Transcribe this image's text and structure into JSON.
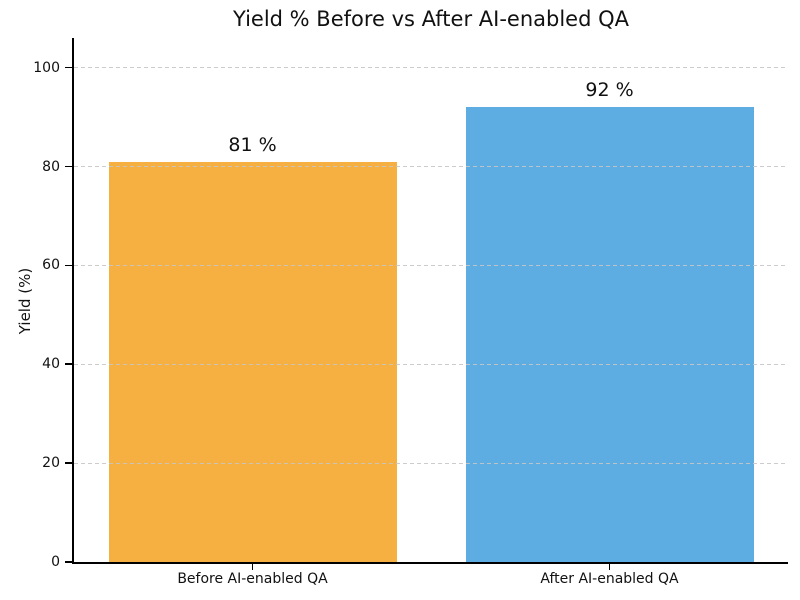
{
  "chart_data": {
    "type": "bar",
    "title": "Yield % Before vs After AI-enabled QA",
    "categories": [
      "Before AI-enabled QA",
      "After AI-enabled QA"
    ],
    "values": [
      81,
      92
    ],
    "bar_value_labels": [
      "81 %",
      "92 %"
    ],
    "bar_colors": [
      "#f5b041",
      "#5dade2"
    ],
    "xlabel": "",
    "ylabel": "Yield (%)",
    "ylim": [
      0,
      106
    ],
    "yticks": [
      0,
      20,
      40,
      60,
      80,
      100
    ],
    "grid": {
      "axis": "y",
      "style": "dashed",
      "color": "#c6c6c6",
      "above_bars": true
    },
    "legend": "none",
    "text_color": "#111111",
    "axis_color": "#000000",
    "background_color": "#ffffff"
  }
}
